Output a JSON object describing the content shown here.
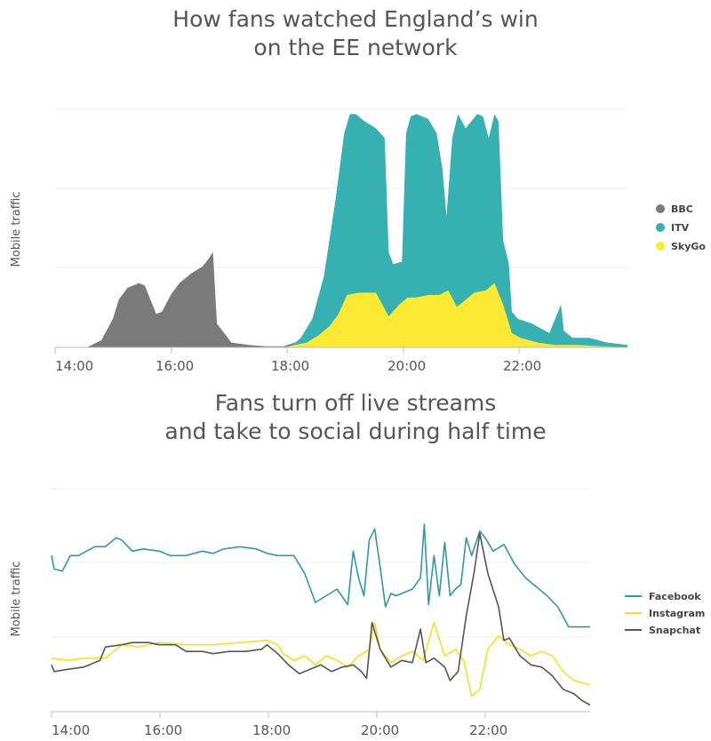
{
  "chart_data": [
    {
      "type": "area",
      "title": [
        "How fans watched England’s win",
        "on the EE network"
      ],
      "xlabel": "",
      "ylabel": "Mobile traffic",
      "x_ticks": [
        "14:00",
        "16:00",
        "18:00",
        "20:00",
        "22:00"
      ],
      "x_unit": "hours",
      "xlim": [
        13.95,
        23.85
      ],
      "ylim": [
        0,
        100
      ],
      "legend_position": "right",
      "series": [
        {
          "name": "BBC",
          "color": "#7a7a7a",
          "x": [
            14.5,
            14.75,
            14.95,
            15.05,
            15.2,
            15.4,
            15.5,
            15.6,
            15.7,
            15.8,
            15.95,
            16.1,
            16.3,
            16.5,
            16.6,
            16.68,
            16.75,
            17.0,
            17.3,
            17.6,
            17.9,
            18.1,
            18.3
          ],
          "values": [
            0,
            3,
            12,
            20,
            25,
            27,
            26,
            20,
            14,
            15,
            22,
            27,
            31,
            34,
            37,
            40,
            10,
            2,
            1,
            0.5,
            0.5,
            2,
            0
          ]
        },
        {
          "name": "ITV",
          "color": "#36b0b0",
          "x": [
            18.0,
            18.2,
            18.4,
            18.6,
            18.8,
            18.95,
            19.05,
            19.15,
            19.3,
            19.5,
            19.65,
            19.72,
            19.8,
            19.95,
            20.02,
            20.1,
            20.2,
            20.4,
            20.55,
            20.65,
            20.72,
            20.82,
            20.92,
            21.05,
            21.15,
            21.25,
            21.35,
            21.45,
            21.55,
            21.62,
            21.7,
            21.8,
            21.85,
            21.95,
            22.2,
            22.5,
            22.7,
            22.75,
            22.9,
            23.2,
            23.5,
            23.85
          ],
          "values": [
            0,
            4,
            12,
            30,
            62,
            90,
            98,
            98,
            95,
            92,
            88,
            40,
            35,
            36,
            90,
            97,
            98,
            96,
            90,
            75,
            55,
            88,
            98,
            92,
            95,
            98,
            97,
            88,
            98,
            95,
            45,
            35,
            15,
            12,
            10,
            6,
            18,
            7,
            4,
            4,
            2,
            1
          ]
        },
        {
          "name": "SkyGo",
          "color": "#fce934",
          "x": [
            17.9,
            18.1,
            18.3,
            18.5,
            18.7,
            18.85,
            19.0,
            19.2,
            19.5,
            19.72,
            19.9,
            20.05,
            20.2,
            20.4,
            20.6,
            20.75,
            20.9,
            21.0,
            21.2,
            21.4,
            21.55,
            21.7,
            21.85,
            22.0,
            22.3,
            22.6,
            23.0,
            23.4,
            23.85
          ],
          "values": [
            0,
            1,
            2,
            5,
            9,
            14,
            22,
            23,
            23,
            13,
            18,
            21,
            21,
            22,
            22,
            24,
            17,
            19,
            23,
            24,
            27,
            18,
            6,
            4,
            2,
            1,
            1,
            0.5,
            0
          ]
        }
      ]
    },
    {
      "type": "line",
      "title": [
        "Fans turn off live streams",
        "and take to social during half time"
      ],
      "xlabel": "",
      "ylabel": "Mobile traffic",
      "x_ticks": [
        "14:00",
        "16:00",
        "18:00",
        "20:00",
        "22:00"
      ],
      "x_unit": "hours",
      "xlim": [
        14.0,
        24.0
      ],
      "ylim": [
        0,
        100
      ],
      "legend_position": "right",
      "series": [
        {
          "name": "Facebook",
          "color": "#2e9b9b",
          "x": [
            14.0,
            14.05,
            14.2,
            14.35,
            14.5,
            14.8,
            15.0,
            15.2,
            15.3,
            15.5,
            15.7,
            16.0,
            16.2,
            16.5,
            16.8,
            17.0,
            17.2,
            17.5,
            17.8,
            18.0,
            18.2,
            18.5,
            18.7,
            18.9,
            19.1,
            19.3,
            19.5,
            19.6,
            19.7,
            19.8,
            19.9,
            20.0,
            20.1,
            20.2,
            20.3,
            20.4,
            20.5,
            20.7,
            20.85,
            20.92,
            21.0,
            21.1,
            21.2,
            21.3,
            21.4,
            21.5,
            21.6,
            21.7,
            21.8,
            21.95,
            22.05,
            22.2,
            22.4,
            22.6,
            22.8,
            23.0,
            23.2,
            23.4,
            23.6,
            23.8,
            24.0
          ],
          "values": [
            70,
            64,
            63,
            70,
            70,
            74,
            74,
            78,
            77,
            72,
            73,
            72,
            70,
            70,
            72,
            71,
            73,
            74,
            73,
            71,
            70,
            70,
            62,
            49,
            52,
            55,
            48,
            72,
            60,
            52,
            77,
            82,
            65,
            47,
            53,
            52,
            53,
            55,
            60,
            84,
            48,
            70,
            52,
            76,
            52,
            55,
            57,
            78,
            70,
            81,
            78,
            72,
            75,
            66,
            60,
            56,
            52,
            47,
            38,
            38,
            38
          ]
        },
        {
          "name": "Instagram",
          "color": "#f1e02a",
          "x": [
            14.0,
            14.3,
            14.6,
            15.0,
            15.3,
            15.6,
            16.0,
            16.5,
            17.0,
            17.5,
            18.0,
            18.2,
            18.3,
            18.5,
            18.7,
            18.9,
            19.1,
            19.3,
            19.5,
            19.7,
            19.9,
            20.0,
            20.1,
            20.3,
            20.5,
            20.7,
            20.9,
            21.1,
            21.3,
            21.5,
            21.65,
            21.8,
            21.95,
            22.1,
            22.3,
            22.5,
            22.7,
            22.9,
            23.1,
            23.3,
            23.5,
            23.7,
            24.0
          ],
          "values": [
            24,
            23,
            24,
            24,
            30,
            29,
            31,
            30,
            30,
            31,
            32,
            30,
            26,
            23,
            25,
            21,
            25,
            23,
            20,
            25,
            28,
            40,
            28,
            22,
            25,
            27,
            23,
            40,
            25,
            28,
            23,
            7,
            10,
            28,
            34,
            30,
            28,
            25,
            27,
            25,
            18,
            14,
            12
          ]
        },
        {
          "name": "Snapchat",
          "color": "#555555",
          "x": [
            14.0,
            14.05,
            14.3,
            14.6,
            14.9,
            15.0,
            15.3,
            15.5,
            15.8,
            16.0,
            16.3,
            16.5,
            16.8,
            17.0,
            17.3,
            17.6,
            17.9,
            18.0,
            18.2,
            18.4,
            18.6,
            18.8,
            19.0,
            19.2,
            19.4,
            19.6,
            19.75,
            19.85,
            19.95,
            20.1,
            20.3,
            20.5,
            20.7,
            20.85,
            20.95,
            21.1,
            21.3,
            21.4,
            21.55,
            21.7,
            21.85,
            21.95,
            22.1,
            22.3,
            22.4,
            22.5,
            22.7,
            22.9,
            23.1,
            23.3,
            23.5,
            23.7,
            23.85,
            24.0
          ],
          "values": [
            21,
            18,
            19,
            20,
            23,
            29,
            30,
            31,
            31,
            30,
            30,
            27,
            27,
            26,
            27,
            27,
            28,
            30,
            26,
            21,
            17,
            19,
            21,
            18,
            20,
            21,
            18,
            15,
            40,
            28,
            20,
            23,
            22,
            37,
            22,
            24,
            20,
            14,
            18,
            43,
            63,
            80,
            62,
            47,
            32,
            33,
            25,
            21,
            20,
            16,
            10,
            8,
            5,
            3
          ]
        }
      ]
    }
  ]
}
